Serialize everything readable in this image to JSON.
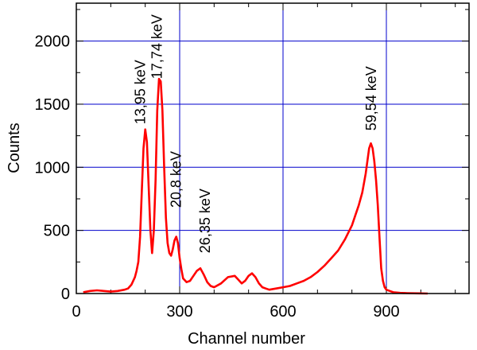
{
  "chart_data": {
    "type": "line",
    "xlabel": "Channel number",
    "ylabel": "Counts",
    "xlim": [
      0,
      1140
    ],
    "ylim": [
      0,
      2300
    ],
    "x_ticks": [
      0,
      300,
      600,
      900
    ],
    "y_ticks": [
      0,
      500,
      1000,
      1500,
      2000
    ],
    "grid": true,
    "colors": {
      "series": "#ff0000",
      "grid": "#0000cc",
      "axis": "#000000"
    },
    "series": [
      {
        "x": [
          20,
          40,
          60,
          80,
          100,
          120,
          140,
          150,
          160,
          170,
          175,
          180,
          185,
          190,
          195,
          200,
          205,
          210,
          215,
          220,
          225,
          230,
          235,
          240,
          245,
          250,
          255,
          260,
          265,
          270,
          275,
          280,
          285,
          290,
          295,
          300,
          305,
          310,
          320,
          330,
          340,
          350,
          360,
          370,
          380,
          390,
          400,
          420,
          440,
          460,
          470,
          480,
          490,
          500,
          510,
          520,
          530,
          540,
          550,
          560,
          580,
          600,
          620,
          640,
          660,
          680,
          700,
          720,
          740,
          760,
          780,
          800,
          810,
          820,
          830,
          840,
          850,
          855,
          860,
          865,
          870,
          875,
          880,
          885,
          890,
          895,
          900,
          910,
          920,
          940,
          960,
          980,
          1000,
          1020
        ],
        "y": [
          10,
          20,
          25,
          20,
          15,
          20,
          30,
          40,
          70,
          130,
          180,
          250,
          450,
          800,
          1150,
          1300,
          1200,
          850,
          500,
          320,
          500,
          900,
          1450,
          1700,
          1680,
          1450,
          1000,
          600,
          400,
          320,
          300,
          350,
          420,
          450,
          400,
          280,
          190,
          120,
          90,
          100,
          140,
          180,
          200,
          150,
          90,
          60,
          50,
          80,
          130,
          140,
          110,
          80,
          100,
          140,
          160,
          130,
          80,
          50,
          40,
          30,
          40,
          50,
          60,
          80,
          100,
          130,
          170,
          220,
          280,
          340,
          430,
          540,
          620,
          700,
          800,
          950,
          1150,
          1190,
          1150,
          1050,
          900,
          700,
          450,
          200,
          100,
          50,
          30,
          20,
          10,
          5,
          3,
          2,
          1,
          0
        ]
      }
    ],
    "annotations": [
      {
        "text": "13,95 keV",
        "x": 200,
        "y": 1340
      },
      {
        "text": "17,74 keV",
        "x": 248,
        "y": 1700
      },
      {
        "text": "20,8 keV",
        "x": 303,
        "y": 680
      },
      {
        "text": "26,35 keV",
        "x": 388,
        "y": 320
      },
      {
        "text": "59,54 keV",
        "x": 870,
        "y": 1290
      }
    ]
  }
}
